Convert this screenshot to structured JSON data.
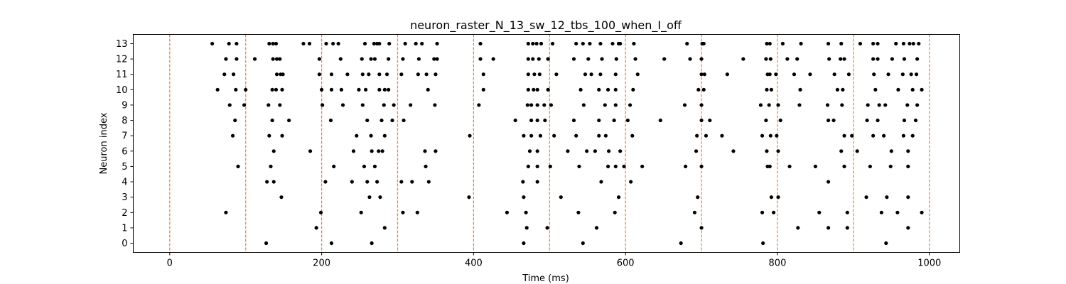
{
  "chart_data": {
    "type": "scatter",
    "title": "neuron_raster_N_13_sw_12_tbs_100_when_I_off",
    "xlabel": "Time (ms)",
    "ylabel": "Neuron index",
    "xlim": [
      -48,
      1040
    ],
    "ylim": [
      -0.6,
      13.6
    ],
    "xticks": [
      0,
      200,
      400,
      600,
      800,
      1000
    ],
    "yticks": [
      0,
      1,
      2,
      3,
      4,
      5,
      6,
      7,
      8,
      9,
      10,
      11,
      12,
      13
    ],
    "grid": false,
    "marker_color": "#000000",
    "vline_color": "#ff7f0e",
    "vlines": [
      0,
      100,
      200,
      300,
      400,
      500,
      600,
      700,
      800,
      900,
      1000
    ],
    "spikes": [
      {
        "neuron": 13,
        "times": [
          56,
          78,
          88,
          131,
          136,
          140,
          176,
          184,
          206,
          215,
          222,
          257,
          269,
          273,
          276,
          289,
          310,
          324,
          332,
          352,
          409,
          472,
          478,
          483,
          489,
          504,
          535,
          544,
          553,
          567,
          583,
          591,
          593,
          611,
          681,
          701,
          703,
          786,
          790,
          807,
          831,
          867,
          884,
          909,
          926,
          932,
          956,
          966,
          974,
          979,
          986
        ]
      },
      {
        "neuron": 12,
        "times": [
          74,
          88,
          112,
          136,
          141,
          145,
          197,
          225,
          253,
          265,
          270,
          288,
          307,
          328,
          348,
          352,
          409,
          426,
          472,
          478,
          486,
          498,
          532,
          551,
          569,
          588,
          613,
          651,
          685,
          700,
          755,
          785,
          791,
          813,
          826,
          868,
          883,
          888,
          926,
          932,
          951,
          967,
          984
        ]
      },
      {
        "neuron": 11,
        "times": [
          72,
          84,
          141,
          146,
          149,
          197,
          213,
          234,
          254,
          262,
          276,
          286,
          305,
          327,
          338,
          350,
          413,
          472,
          480,
          487,
          509,
          547,
          555,
          567,
          587,
          616,
          700,
          704,
          734,
          787,
          790,
          798,
          822,
          843,
          875,
          894,
          927,
          946,
          965,
          976,
          983
        ]
      },
      {
        "neuron": 10,
        "times": [
          63,
          87,
          100,
          135,
          140,
          148,
          200,
          213,
          226,
          249,
          258,
          276,
          283,
          288,
          340,
          413,
          472,
          479,
          484,
          498,
          541,
          565,
          577,
          587,
          610,
          696,
          703,
          786,
          792,
          830,
          879,
          886,
          929,
          959,
          978,
          990
        ]
      },
      {
        "neuron": 9,
        "times": [
          79,
          98,
          130,
          145,
          201,
          228,
          254,
          282,
          295,
          317,
          349,
          407,
          471,
          476,
          484,
          493,
          502,
          545,
          573,
          587,
          606,
          678,
          700,
          778,
          789,
          801,
          829,
          866,
          885,
          919,
          934,
          942,
          971,
          984
        ]
      },
      {
        "neuron": 8,
        "times": [
          86,
          135,
          157,
          212,
          260,
          279,
          293,
          308,
          455,
          476,
          484,
          494,
          532,
          565,
          585,
          603,
          646,
          700,
          711,
          785,
          804,
          867,
          874,
          918,
          932,
          967,
          982
        ]
      },
      {
        "neuron": 7,
        "times": [
          83,
          131,
          148,
          246,
          265,
          283,
          395,
          466,
          476,
          488,
          506,
          535,
          565,
          574,
          609,
          694,
          706,
          727,
          780,
          791,
          799,
          888,
          898,
          926,
          940,
          966,
          978
        ]
      },
      {
        "neuron": 6,
        "times": [
          137,
          185,
          242,
          266,
          275,
          280,
          336,
          350,
          474,
          484,
          524,
          549,
          560,
          578,
          593,
          693,
          742,
          786,
          801,
          884,
          905,
          950,
          972
        ]
      },
      {
        "neuron": 5,
        "times": [
          90,
          133,
          216,
          256,
          270,
          337,
          472,
          484,
          501,
          539,
          577,
          587,
          598,
          622,
          679,
          700,
          787,
          790,
          816,
          850,
          888,
          922,
          949,
          972
        ]
      },
      {
        "neuron": 4,
        "times": [
          128,
          137,
          205,
          240,
          260,
          273,
          305,
          319,
          341,
          465,
          484,
          568,
          607,
          867
        ]
      },
      {
        "neuron": 3,
        "times": [
          147,
          263,
          277,
          394,
          466,
          515,
          591,
          695,
          792,
          801,
          917,
          944,
          972
        ]
      },
      {
        "neuron": 2,
        "times": [
          74,
          199,
          252,
          307,
          326,
          444,
          469,
          538,
          586,
          691,
          780,
          795,
          855,
          892,
          937,
          958,
          990
        ]
      },
      {
        "neuron": 1,
        "times": [
          193,
          283,
          470,
          497,
          562,
          700,
          827,
          867,
          892,
          972
        ]
      },
      {
        "neuron": 0,
        "times": [
          127,
          213,
          266,
          466,
          544,
          673,
          781,
          943
        ]
      }
    ]
  }
}
